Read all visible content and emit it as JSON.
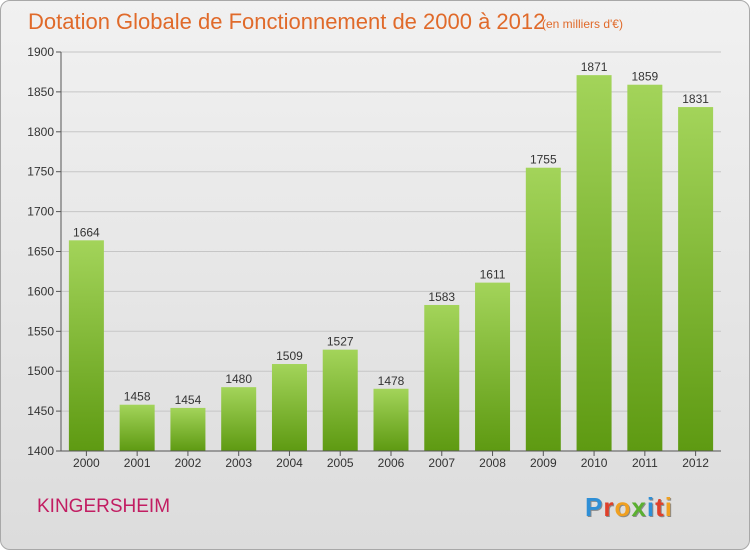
{
  "header": {
    "title": "Dotation Globale de Fonctionnement de 2000 à 2012",
    "subtitle": "(en milliers d'€)"
  },
  "footer": {
    "commune": "KINGERSHEIM",
    "logo": [
      "P",
      "r",
      "o",
      "x",
      "i",
      "t",
      "i"
    ]
  },
  "colors": {
    "title": "#e06a2a",
    "commune": "#c21d62",
    "bar_light": "#a3d45a",
    "bar_dark": "#5e9a12",
    "logo": [
      "#2f8fd6",
      "#e0402a",
      "#f0a020",
      "#5bb030",
      "#2f8fd6",
      "#e0402a",
      "#f0a020"
    ]
  },
  "chart_data": {
    "type": "bar",
    "categories": [
      "2000",
      "2001",
      "2002",
      "2003",
      "2004",
      "2005",
      "2006",
      "2007",
      "2008",
      "2009",
      "2010",
      "2011",
      "2012"
    ],
    "values": [
      1664,
      1458,
      1454,
      1480,
      1509,
      1527,
      1478,
      1583,
      1611,
      1755,
      1871,
      1859,
      1831
    ],
    "title": "Dotation Globale de Fonctionnement de 2000 à 2012",
    "unit": "(en milliers d'€)",
    "ylim": [
      1400,
      1900
    ],
    "yticks": [
      1400,
      1450,
      1500,
      1550,
      1600,
      1650,
      1700,
      1750,
      1800,
      1850,
      1900
    ],
    "grid": true,
    "data_labels": true
  }
}
